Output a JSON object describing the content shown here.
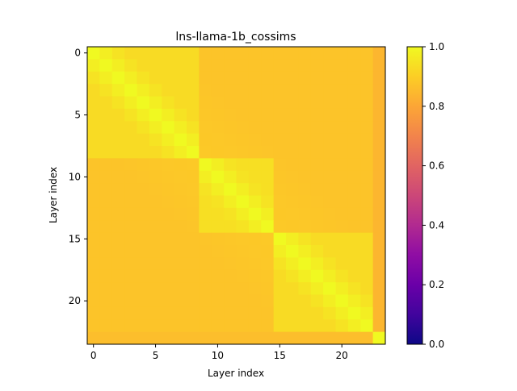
{
  "chart_data": {
    "type": "heatmap",
    "title": "lns-llama-1b_cossims",
    "xlabel": "Layer index",
    "ylabel": "Layer index",
    "n_layers": 24,
    "x_ticks": [
      0,
      5,
      10,
      15,
      20
    ],
    "y_ticks": [
      0,
      5,
      10,
      15,
      20
    ],
    "colormap": "plasma",
    "colorbar": {
      "min": 0.0,
      "max": 1.0,
      "ticks": [
        "0.0",
        "0.2",
        "0.4",
        "0.6",
        "0.8",
        "1.0"
      ]
    },
    "blocks": [
      {
        "layers": [
          0,
          8
        ],
        "within": 0.93
      },
      {
        "layers": [
          9,
          14
        ],
        "within": 0.94
      },
      {
        "layers": [
          15,
          22
        ],
        "within": 0.93
      }
    ],
    "between_blocks": 0.89,
    "last_layer_row": 0.86,
    "last_layer_col": 0.84
  }
}
